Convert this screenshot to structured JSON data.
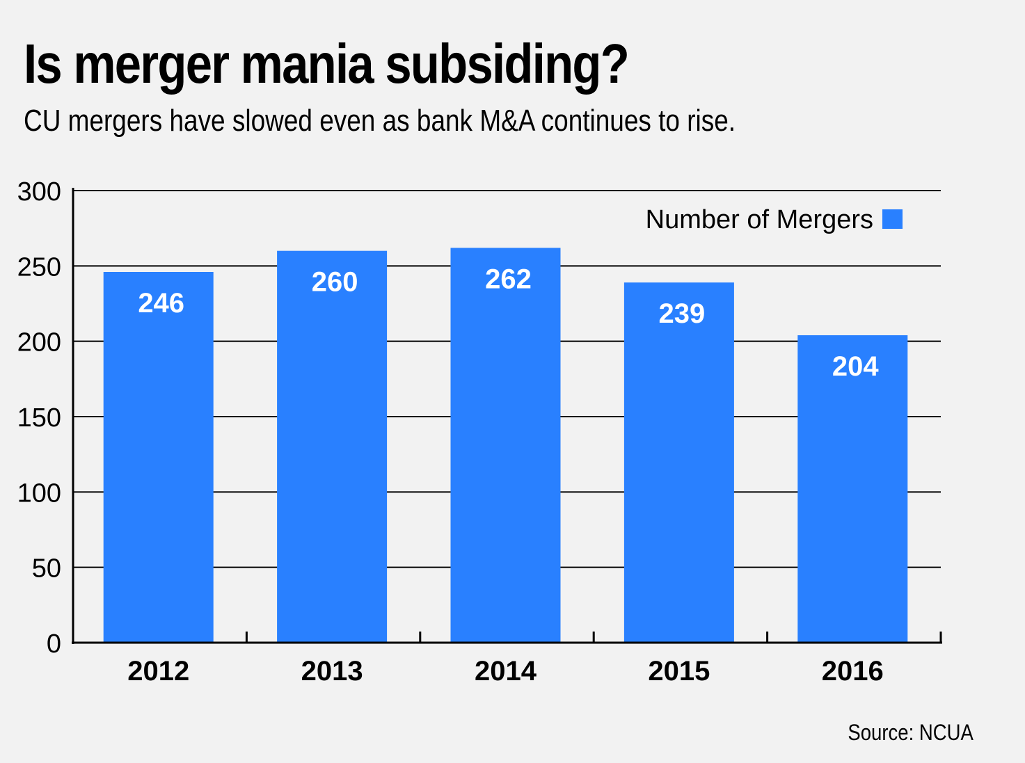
{
  "title": "Is merger mania subsiding?",
  "subtitle": "CU mergers have slowed even as bank M&A continues to rise.",
  "source": "Source: NCUA",
  "colors": {
    "bar": "#2980ff",
    "background": "#f2f2f2",
    "gridline": "#000000",
    "bar_label": "#ffffff"
  },
  "chart_data": {
    "type": "bar",
    "categories": [
      "2012",
      "2013",
      "2014",
      "2015",
      "2016"
    ],
    "series": [
      {
        "name": "Number of Mergers",
        "values": [
          246,
          260,
          262,
          239,
          204
        ],
        "data_labels": [
          "246",
          "260",
          "262",
          "239",
          "204"
        ]
      }
    ],
    "y_ticks": [
      "0",
      "50",
      "100",
      "150",
      "200",
      "250",
      "300"
    ],
    "ylim": [
      0,
      300
    ],
    "grid": true,
    "legend": "top-right",
    "xlabel": "",
    "ylabel": ""
  }
}
